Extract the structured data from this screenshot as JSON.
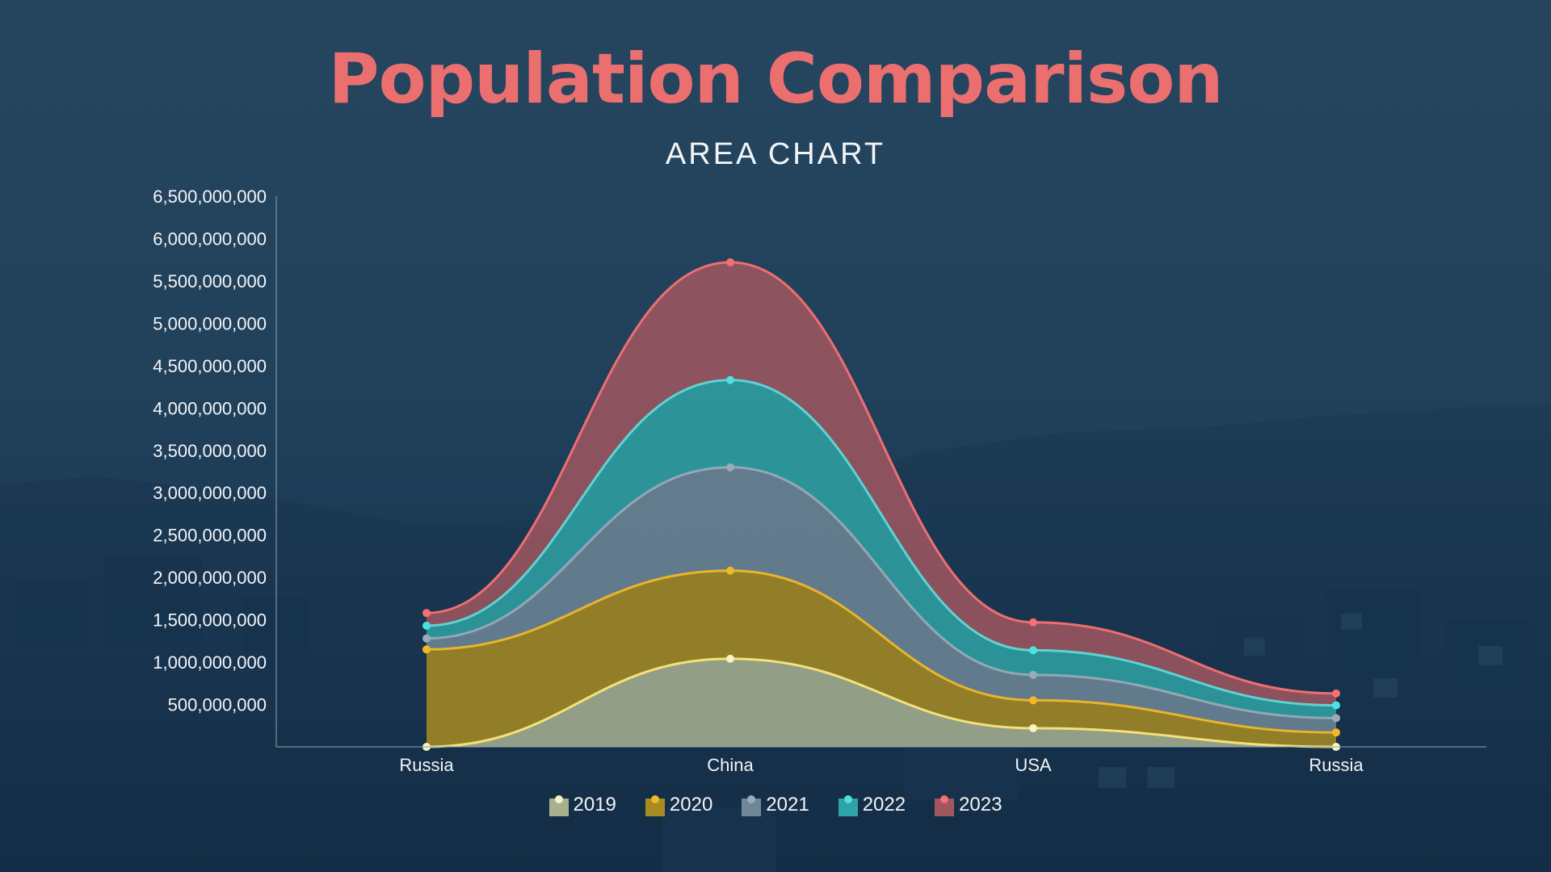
{
  "header": {
    "title": "Population Comparison",
    "subtitle": "AREA CHART"
  },
  "colors": {
    "title": "#ec6f70",
    "axis": "#8fa3b5",
    "text": "#f3f5f7"
  },
  "chart_data": {
    "type": "area",
    "stacked": true,
    "smooth": true,
    "categories": [
      "Russia",
      "China",
      "USA",
      "Russia"
    ],
    "series": [
      {
        "name": "2019",
        "values": [
          0,
          1040000000,
          220000000,
          0
        ],
        "fill": "#a8b18f",
        "line": "#f3e27a",
        "marker": "#f7f1c2"
      },
      {
        "name": "2020",
        "values": [
          1150000000,
          1040000000,
          330000000,
          170000000
        ],
        "fill": "#a88b22",
        "line": "#e9b52c",
        "marker": "#f1b92a"
      },
      {
        "name": "2021",
        "values": [
          130000000,
          1220000000,
          300000000,
          170000000
        ],
        "fill": "#6f8798",
        "line": "#93a7b5",
        "marker": "#9aabb8"
      },
      {
        "name": "2022",
        "values": [
          150000000,
          1030000000,
          290000000,
          150000000
        ],
        "fill": "#2fa3a5",
        "line": "#5fd2d2",
        "marker": "#4fe0e2"
      },
      {
        "name": "2023",
        "values": [
          150000000,
          1390000000,
          330000000,
          140000000
        ],
        "fill": "#a0575f",
        "line": "#ef6e72",
        "marker": "#f56f73"
      }
    ],
    "yticks": [
      "500,000,000",
      "1,000,000,000",
      "1,500,000,000",
      "2,000,000,000",
      "2,500,000,000",
      "3,000,000,000",
      "3,500,000,000",
      "4,000,000,000",
      "4,500,000,000",
      "5,000,000,000",
      "5,500,000,000",
      "6,000,000,000",
      "6,500,000,000"
    ],
    "ylim": [
      0,
      6500000000
    ],
    "legend_position": "bottom-center",
    "grid": false
  }
}
